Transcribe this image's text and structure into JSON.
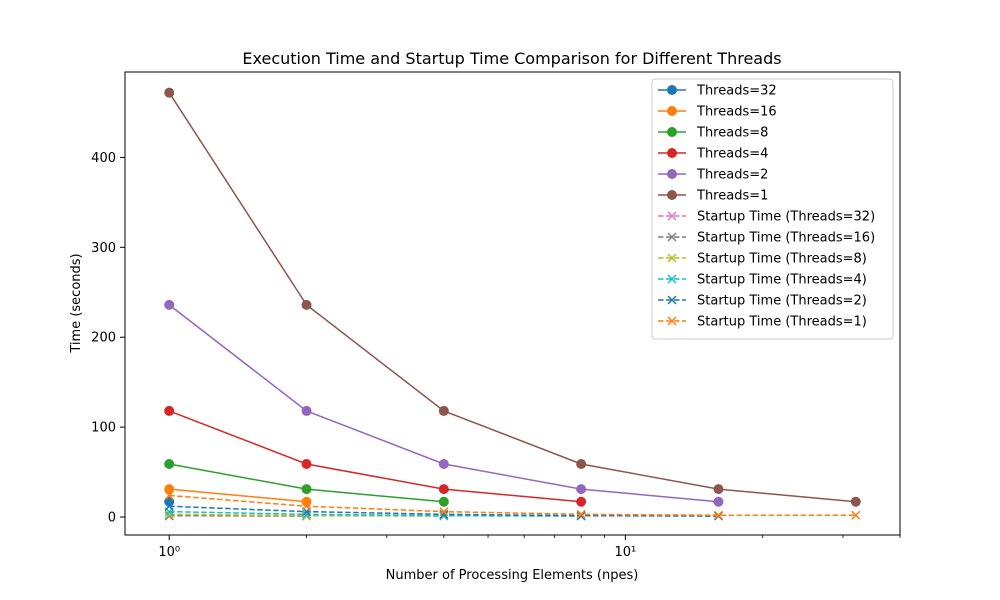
{
  "chart_data": {
    "type": "line",
    "title": "Execution Time and Startup Time Comparison for Different Threads",
    "xlabel": "Number of Processing Elements (npes)",
    "ylabel": "Time (seconds)",
    "x_scale": "log",
    "xlim": [
      0.8,
      40
    ],
    "ylim": [
      -20,
      495
    ],
    "x_ticks": [
      1,
      10
    ],
    "x_tick_labels": [
      "10⁰",
      "10¹"
    ],
    "y_ticks": [
      0,
      100,
      200,
      300,
      400
    ],
    "y_tick_labels": [
      "0",
      "100",
      "200",
      "300",
      "400"
    ],
    "grid": false,
    "legend_position": "top-right",
    "series": [
      {
        "name": "Threads=32",
        "color": "#1f77b4",
        "style": "solid",
        "marker": "circle",
        "x": [
          1
        ],
        "y": [
          17
        ]
      },
      {
        "name": "Threads=16",
        "color": "#ff7f0e",
        "style": "solid",
        "marker": "circle",
        "x": [
          1,
          2
        ],
        "y": [
          31,
          17
        ]
      },
      {
        "name": "Threads=8",
        "color": "#2ca02c",
        "style": "solid",
        "marker": "circle",
        "x": [
          1,
          2,
          4
        ],
        "y": [
          59,
          31,
          17
        ]
      },
      {
        "name": "Threads=4",
        "color": "#d62728",
        "style": "solid",
        "marker": "circle",
        "x": [
          1,
          2,
          4,
          8
        ],
        "y": [
          118,
          59,
          31,
          17
        ]
      },
      {
        "name": "Threads=2",
        "color": "#9467bd",
        "style": "solid",
        "marker": "circle",
        "x": [
          1,
          2,
          4,
          8,
          16
        ],
        "y": [
          236,
          118,
          59,
          31,
          17
        ]
      },
      {
        "name": "Threads=1",
        "color": "#8c564b",
        "style": "solid",
        "marker": "circle",
        "x": [
          1,
          2,
          4,
          8,
          16,
          32
        ],
        "y": [
          472,
          236,
          118,
          59,
          31,
          17
        ]
      },
      {
        "name": "Startup Time (Threads=32)",
        "color": "#e377c2",
        "style": "dashed",
        "marker": "x",
        "x": [
          1
        ],
        "y": [
          1
        ]
      },
      {
        "name": "Startup Time (Threads=16)",
        "color": "#7f7f7f",
        "style": "dashed",
        "marker": "x",
        "x": [
          1,
          2
        ],
        "y": [
          1.5,
          1
        ]
      },
      {
        "name": "Startup Time (Threads=8)",
        "color": "#bcbd22",
        "style": "dashed",
        "marker": "x",
        "x": [
          1,
          2,
          4
        ],
        "y": [
          3,
          1.5,
          1
        ]
      },
      {
        "name": "Startup Time (Threads=4)",
        "color": "#17becf",
        "style": "dashed",
        "marker": "x",
        "x": [
          1,
          2,
          4,
          8
        ],
        "y": [
          6,
          3,
          1.5,
          1
        ]
      },
      {
        "name": "Startup Time (Threads=2)",
        "color": "#1f77b4",
        "style": "dashed",
        "marker": "x",
        "x": [
          1,
          2,
          4,
          8,
          16
        ],
        "y": [
          12,
          6,
          3,
          1.5,
          1
        ]
      },
      {
        "name": "Startup Time (Threads=1)",
        "color": "#ff7f0e",
        "style": "dashed",
        "marker": "x",
        "x": [
          1,
          2,
          4,
          8,
          16,
          32
        ],
        "y": [
          24,
          12,
          6,
          3,
          2,
          2
        ]
      }
    ]
  }
}
